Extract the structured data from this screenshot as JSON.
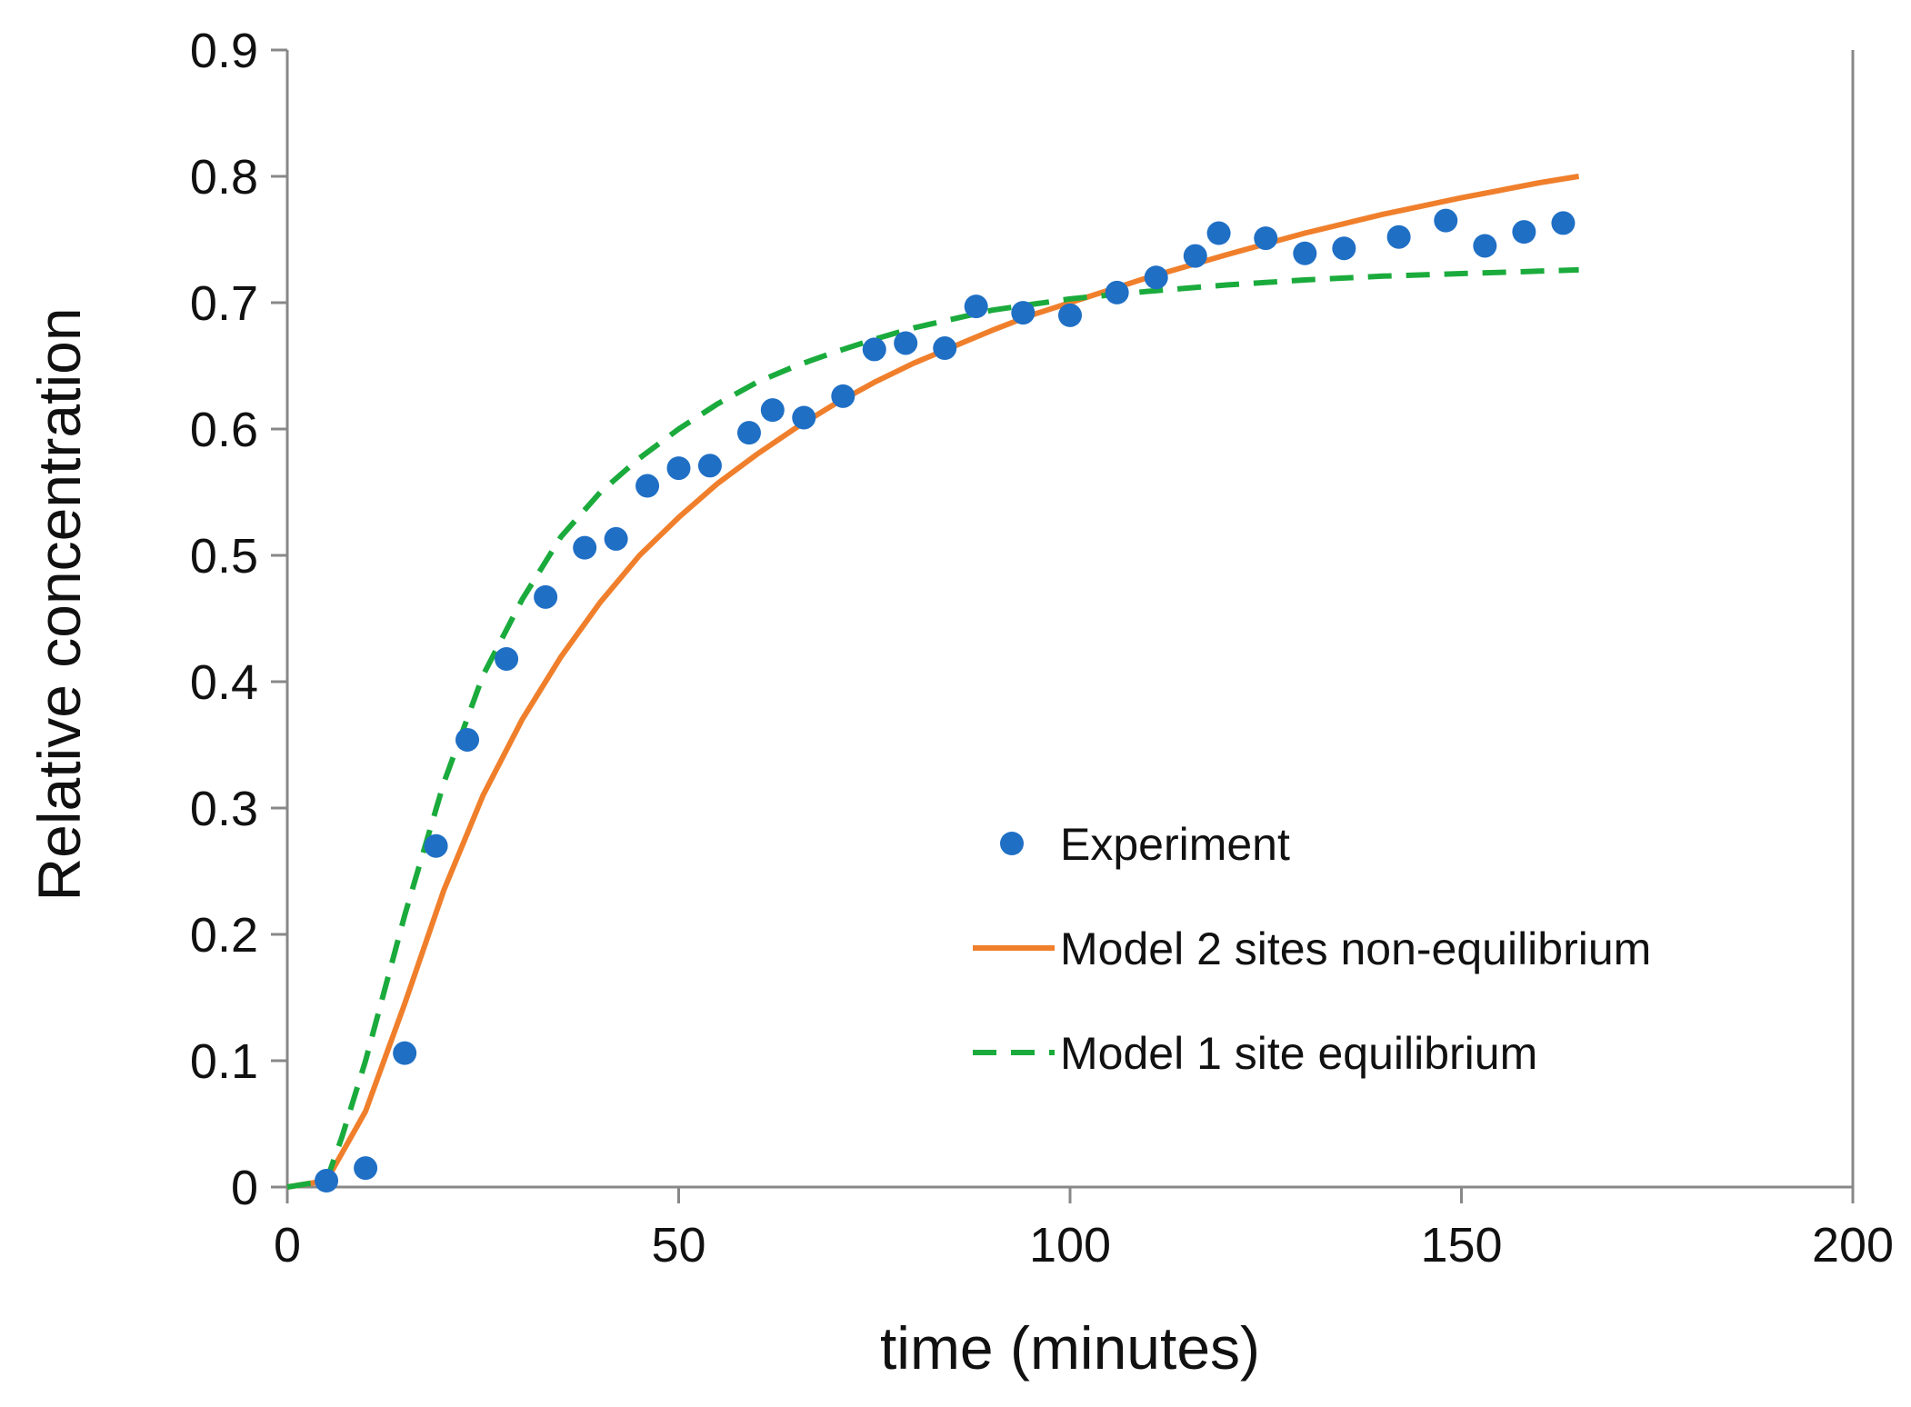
{
  "chart_data": {
    "type": "scatter+line",
    "title": "",
    "xlabel": "time (minutes)",
    "ylabel": "Relative concentration",
    "xlim": [
      0,
      200
    ],
    "ylim": [
      0,
      0.9
    ],
    "xticks": [
      0,
      50,
      100,
      150,
      200
    ],
    "yticks": [
      0,
      0.1,
      0.2,
      0.3,
      0.4,
      0.5,
      0.6,
      0.7,
      0.8,
      0.9
    ],
    "xtick_labels": [
      "0",
      "50",
      "100",
      "150",
      "200"
    ],
    "ytick_labels": [
      "0",
      "0.1",
      "0.2",
      "0.3",
      "0.4",
      "0.5",
      "0.6",
      "0.7",
      "0.8",
      "0.9"
    ],
    "grid": false,
    "legend_position": "lower-right",
    "colors": {
      "experiment": "#1f6fc5",
      "model2": "#f07f2c",
      "model1": "#1aab3c",
      "axis": "#888888"
    },
    "series": [
      {
        "name": "Experiment",
        "kind": "scatter",
        "color": "#1f6fc5",
        "x": [
          5,
          10,
          15,
          19,
          23,
          28,
          33,
          38,
          42,
          46,
          50,
          54,
          59,
          62,
          66,
          71,
          75,
          79,
          84,
          88,
          94,
          100,
          106,
          111,
          116,
          119,
          125,
          130,
          135,
          142,
          148,
          153,
          158,
          163
        ],
        "y": [
          0.005,
          0.015,
          0.106,
          0.27,
          0.354,
          0.418,
          0.467,
          0.506,
          0.513,
          0.555,
          0.569,
          0.571,
          0.597,
          0.615,
          0.609,
          0.626,
          0.663,
          0.668,
          0.664,
          0.697,
          0.692,
          0.69,
          0.708,
          0.72,
          0.737,
          0.755,
          0.751,
          0.739,
          0.743,
          0.752,
          0.765,
          0.745,
          0.756,
          0.763
        ]
      },
      {
        "name": "Model 2 sites non-equilibrium",
        "kind": "line",
        "style": "solid",
        "color": "#f07f2c",
        "x": [
          0,
          5,
          10,
          15,
          20,
          25,
          30,
          35,
          40,
          45,
          50,
          55,
          60,
          65,
          70,
          75,
          80,
          85,
          90,
          95,
          100,
          110,
          120,
          130,
          140,
          150,
          160,
          165
        ],
        "y": [
          0,
          0.005,
          0.06,
          0.145,
          0.235,
          0.31,
          0.37,
          0.42,
          0.463,
          0.5,
          0.53,
          0.557,
          0.58,
          0.601,
          0.62,
          0.637,
          0.652,
          0.665,
          0.678,
          0.69,
          0.7,
          0.72,
          0.738,
          0.755,
          0.77,
          0.783,
          0.795,
          0.8
        ]
      },
      {
        "name": "Model 1 site equilibrium",
        "kind": "line",
        "style": "dashed",
        "color": "#1aab3c",
        "x": [
          0,
          5,
          7,
          10,
          15,
          20,
          25,
          30,
          35,
          40,
          45,
          50,
          55,
          60,
          65,
          70,
          75,
          80,
          90,
          100,
          110,
          120,
          130,
          140,
          150,
          160,
          165
        ],
        "y": [
          0,
          0.005,
          0.04,
          0.1,
          0.215,
          0.32,
          0.405,
          0.465,
          0.515,
          0.55,
          0.577,
          0.6,
          0.62,
          0.637,
          0.65,
          0.661,
          0.671,
          0.68,
          0.694,
          0.703,
          0.709,
          0.714,
          0.718,
          0.721,
          0.723,
          0.725,
          0.726
        ]
      }
    ]
  }
}
